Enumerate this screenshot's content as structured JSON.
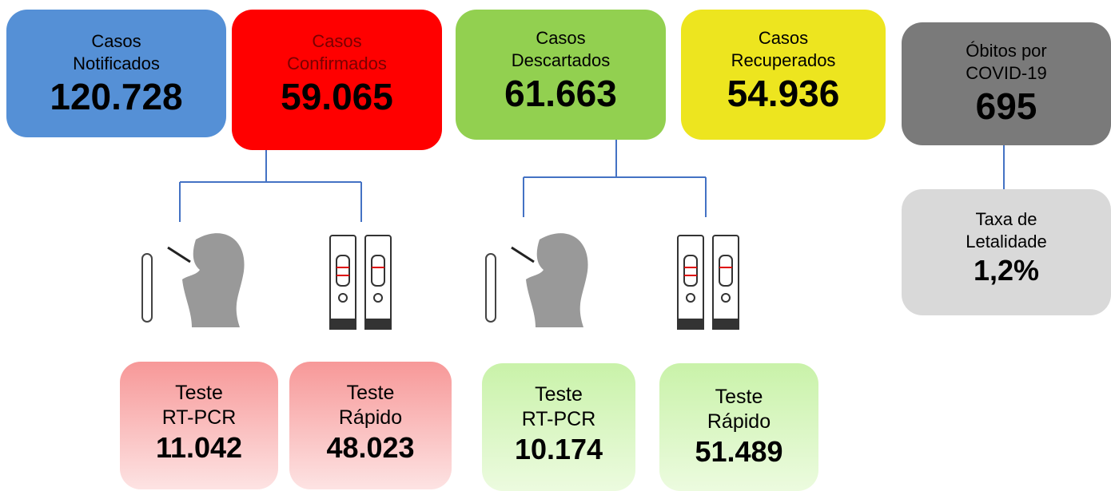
{
  "top_boxes": [
    {
      "label": [
        "Casos",
        "Notificados"
      ],
      "value": "120.728"
    },
    {
      "label": [
        "Casos",
        "Confirmados"
      ],
      "value": "59.065"
    },
    {
      "label": [
        "Casos",
        "Descartados"
      ],
      "value": "61.663"
    },
    {
      "label": [
        "Casos",
        "Recuperados"
      ],
      "value": "54.936"
    },
    {
      "label": [
        "Óbitos por",
        "COVID-19"
      ],
      "value": "695"
    }
  ],
  "lethality": {
    "label": [
      "Taxa de",
      "Letalidade"
    ],
    "value": "1,2%"
  },
  "tests": [
    {
      "label": [
        "Teste",
        "RT-PCR"
      ],
      "value": "11.042"
    },
    {
      "label": [
        "Teste",
        "Rápido"
      ],
      "value": "48.023"
    },
    {
      "label": [
        "Teste",
        "RT-PCR"
      ],
      "value": "10.174"
    },
    {
      "label": [
        "Teste",
        "Rápido"
      ],
      "value": "51.489"
    }
  ]
}
